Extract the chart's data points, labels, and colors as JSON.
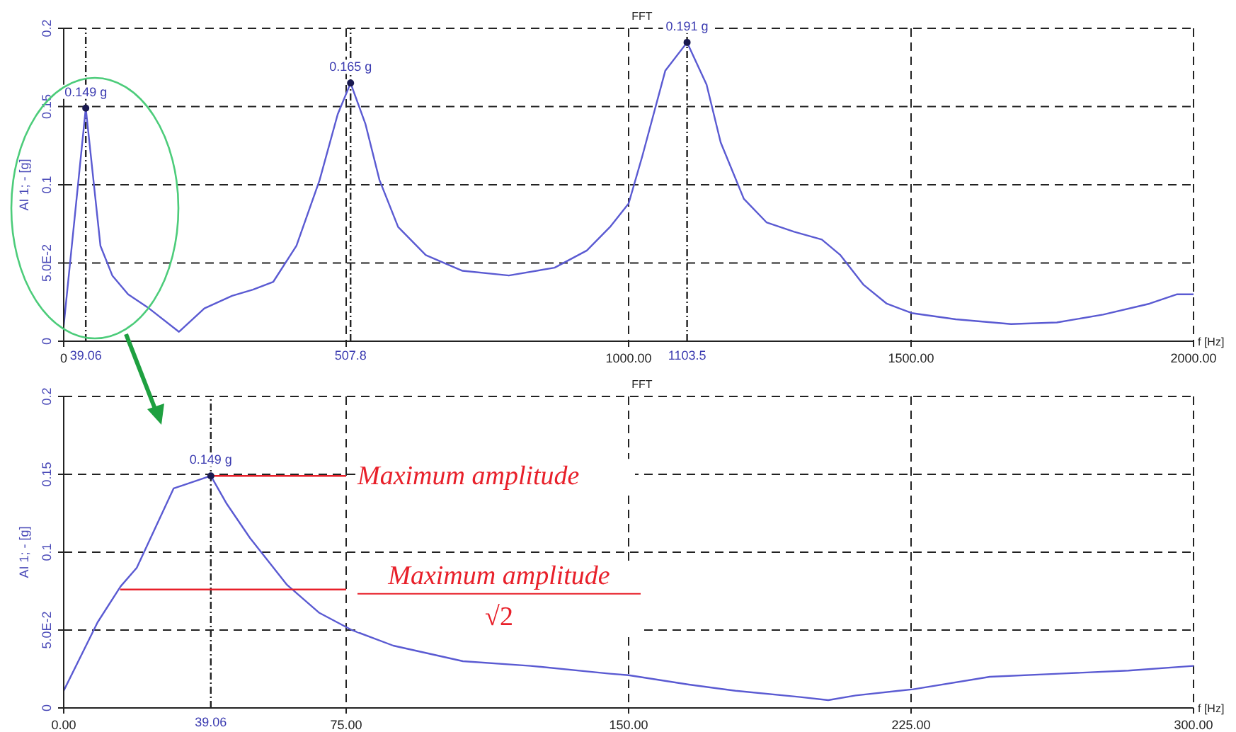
{
  "chart_data": [
    {
      "type": "line",
      "title": "FFT",
      "xlabel": "f [Hz]",
      "ylabel": "AI 1; - [g]",
      "xlim": [
        0,
        2000
      ],
      "ylim": [
        0,
        0.2
      ],
      "xticks": [
        {
          "value": 0,
          "label": "0"
        },
        {
          "value": 500,
          "label": null
        },
        {
          "value": 1000,
          "label": "1000.00"
        },
        {
          "value": 1500,
          "label": "1500.00"
        },
        {
          "value": 2000,
          "label": "2000.00"
        }
      ],
      "yticks": [
        0,
        {
          "value": 0.05,
          "label": "5.0E-2"
        },
        0.1,
        0.15,
        0.2
      ],
      "grid": true,
      "marker": "none",
      "line_style": "solid",
      "ref_lines": [
        {
          "axis": "x",
          "value": 39.06,
          "label": "39.06"
        },
        {
          "axis": "x",
          "value": 507.8,
          "label": "507.8"
        },
        {
          "axis": "x",
          "value": 1103.5,
          "label": "1103.5"
        }
      ],
      "series": [
        {
          "color": "#5a5ad2",
          "x": [
            0,
            39.06,
            65,
            86,
            114,
            151,
            204,
            249,
            298,
            335,
            371,
            412,
            453,
            485,
            507.8,
            534,
            559,
            592,
            641,
            706,
            788,
            869,
            926,
            967,
            1000,
            1024,
            1065,
            1103.5,
            1138,
            1163,
            1204,
            1244,
            1293,
            1342,
            1375,
            1416,
            1457,
            1501,
            1579,
            1677,
            1758,
            1840,
            1922,
            1971,
            2000
          ],
          "values": [
            0.01,
            0.149,
            0.061,
            0.042,
            0.03,
            0.021,
            0.006,
            0.021,
            0.029,
            0.033,
            0.038,
            0.061,
            0.103,
            0.145,
            0.165,
            0.139,
            0.103,
            0.073,
            0.055,
            0.045,
            0.042,
            0.047,
            0.058,
            0.073,
            0.088,
            0.118,
            0.173,
            0.191,
            0.164,
            0.127,
            0.091,
            0.076,
            0.07,
            0.065,
            0.055,
            0.036,
            0.024,
            0.018,
            0.014,
            0.011,
            0.012,
            0.017,
            0.024,
            0.03,
            0.03
          ],
          "value_labels": [
            null,
            "0.149 g",
            null,
            null,
            null,
            null,
            null,
            null,
            null,
            null,
            null,
            null,
            null,
            null,
            "0.165 g",
            null,
            null,
            null,
            null,
            null,
            null,
            null,
            null,
            null,
            null,
            null,
            null,
            "0.191 g",
            null,
            null,
            null,
            null,
            null,
            null,
            null,
            null,
            null,
            null,
            null,
            null,
            null,
            null,
            null,
            null,
            null
          ]
        }
      ]
    },
    {
      "type": "line",
      "title": "FFT",
      "xlabel": "f [Hz]",
      "ylabel": "AI 1; - [g]",
      "xlim": [
        0,
        300
      ],
      "ylim": [
        0,
        0.2
      ],
      "xticks": [
        {
          "value": 0,
          "label": "0.00"
        },
        {
          "value": 75,
          "label": "75.00"
        },
        {
          "value": 150,
          "label": "150.00"
        },
        {
          "value": 225,
          "label": "225.00"
        },
        {
          "value": 300,
          "label": "300.00"
        }
      ],
      "yticks": [
        0,
        {
          "value": 0.05,
          "label": "5.0E-2"
        },
        0.1,
        0.15,
        0.2
      ],
      "grid": true,
      "marker": "none",
      "line_style": "solid",
      "ref_lines": [
        {
          "axis": "x",
          "value": 39.06,
          "label": "39.06"
        }
      ],
      "annotations": [
        {
          "text": "Maximum amplitude",
          "x": 75,
          "y": 0.149
        },
        {
          "text": "Maximum amplitude",
          "x": 75,
          "y": 0.076
        },
        "√2"
      ],
      "series": [
        {
          "color": "#5a5ad2",
          "x": [
            0,
            9,
            15.1,
            19.4,
            29.2,
            39.06,
            43.3,
            49.5,
            59.3,
            67.9,
            76.5,
            87.5,
            106,
            124,
            145,
            150,
            166,
            178.4,
            195.6,
            203,
            210.3,
            225.6,
            245.9,
            264.3,
            282.7,
            300
          ],
          "values": [
            0.011,
            0.055,
            0.078,
            0.09,
            0.141,
            0.149,
            0.131,
            0.109,
            0.079,
            0.061,
            0.05,
            0.04,
            0.03,
            0.027,
            0.022,
            0.021,
            0.015,
            0.011,
            0.007,
            0.005,
            0.008,
            0.012,
            0.02,
            0.022,
            0.024,
            0.027
          ],
          "value_labels": [
            null,
            null,
            null,
            null,
            null,
            "0.149 g",
            null,
            null,
            null,
            null,
            null,
            null,
            null,
            null,
            null,
            null,
            null,
            null,
            null,
            null,
            null,
            null,
            null,
            null,
            null,
            null
          ]
        },
        {
          "color": "#e8202a",
          "x": [
            39.06,
            75
          ],
          "values": [
            0.149,
            0.149
          ]
        },
        {
          "color": "#e8202a",
          "x": [
            15,
            75
          ],
          "values": [
            0.076,
            0.076
          ]
        }
      ]
    }
  ]
}
